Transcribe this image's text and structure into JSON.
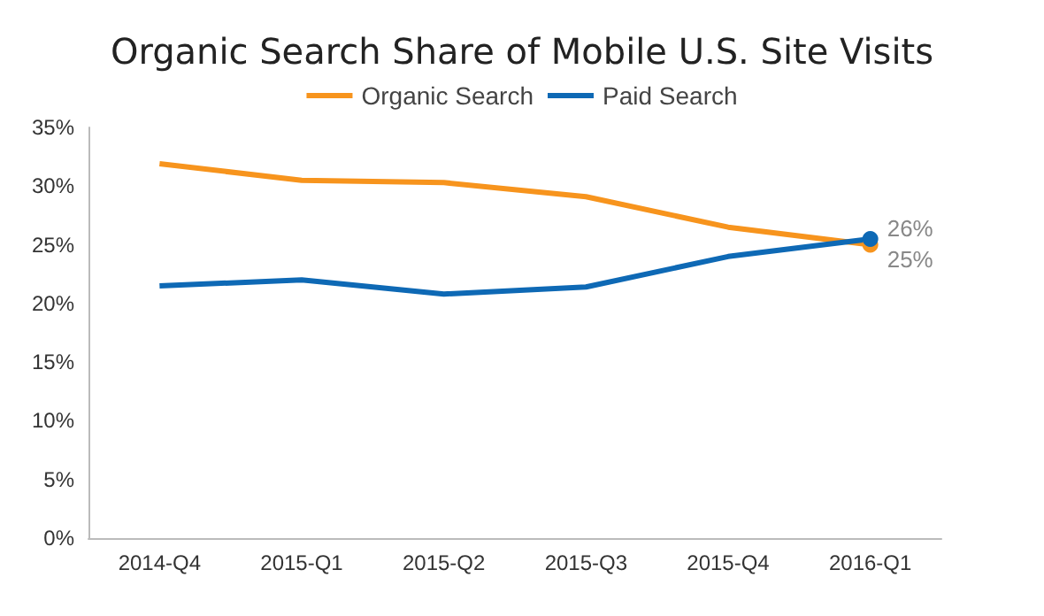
{
  "chart_data": {
    "type": "line",
    "title": "Organic Search Share of Mobile U.S. Site Visits",
    "categories": [
      "2014-Q4",
      "2015-Q1",
      "2015-Q2",
      "2015-Q3",
      "2015-Q4",
      "2016-Q1"
    ],
    "series": [
      {
        "name": "Organic Search",
        "color": "#f7941d",
        "values": [
          31.9,
          30.5,
          30.3,
          29.1,
          26.5,
          25.0
        ],
        "value_labels": [
          null,
          null,
          null,
          null,
          null,
          "25%"
        ]
      },
      {
        "name": "Paid Search",
        "color": "#0e69b5",
        "values": [
          21.5,
          22.0,
          20.8,
          21.4,
          24.0,
          25.5
        ],
        "value_labels": [
          null,
          null,
          null,
          null,
          null,
          "26%"
        ]
      }
    ],
    "ylim": [
      0,
      35
    ],
    "yticks": [
      {
        "value": 0,
        "label": "0%"
      },
      {
        "value": 5,
        "label": "5%"
      },
      {
        "value": 10,
        "label": "10%"
      },
      {
        "value": 15,
        "label": "15%"
      },
      {
        "value": 20,
        "label": "20%"
      },
      {
        "value": 25,
        "label": "25%"
      },
      {
        "value": 30,
        "label": "30%"
      },
      {
        "value": 35,
        "label": "35%"
      }
    ],
    "grid": false,
    "legend": "top"
  }
}
